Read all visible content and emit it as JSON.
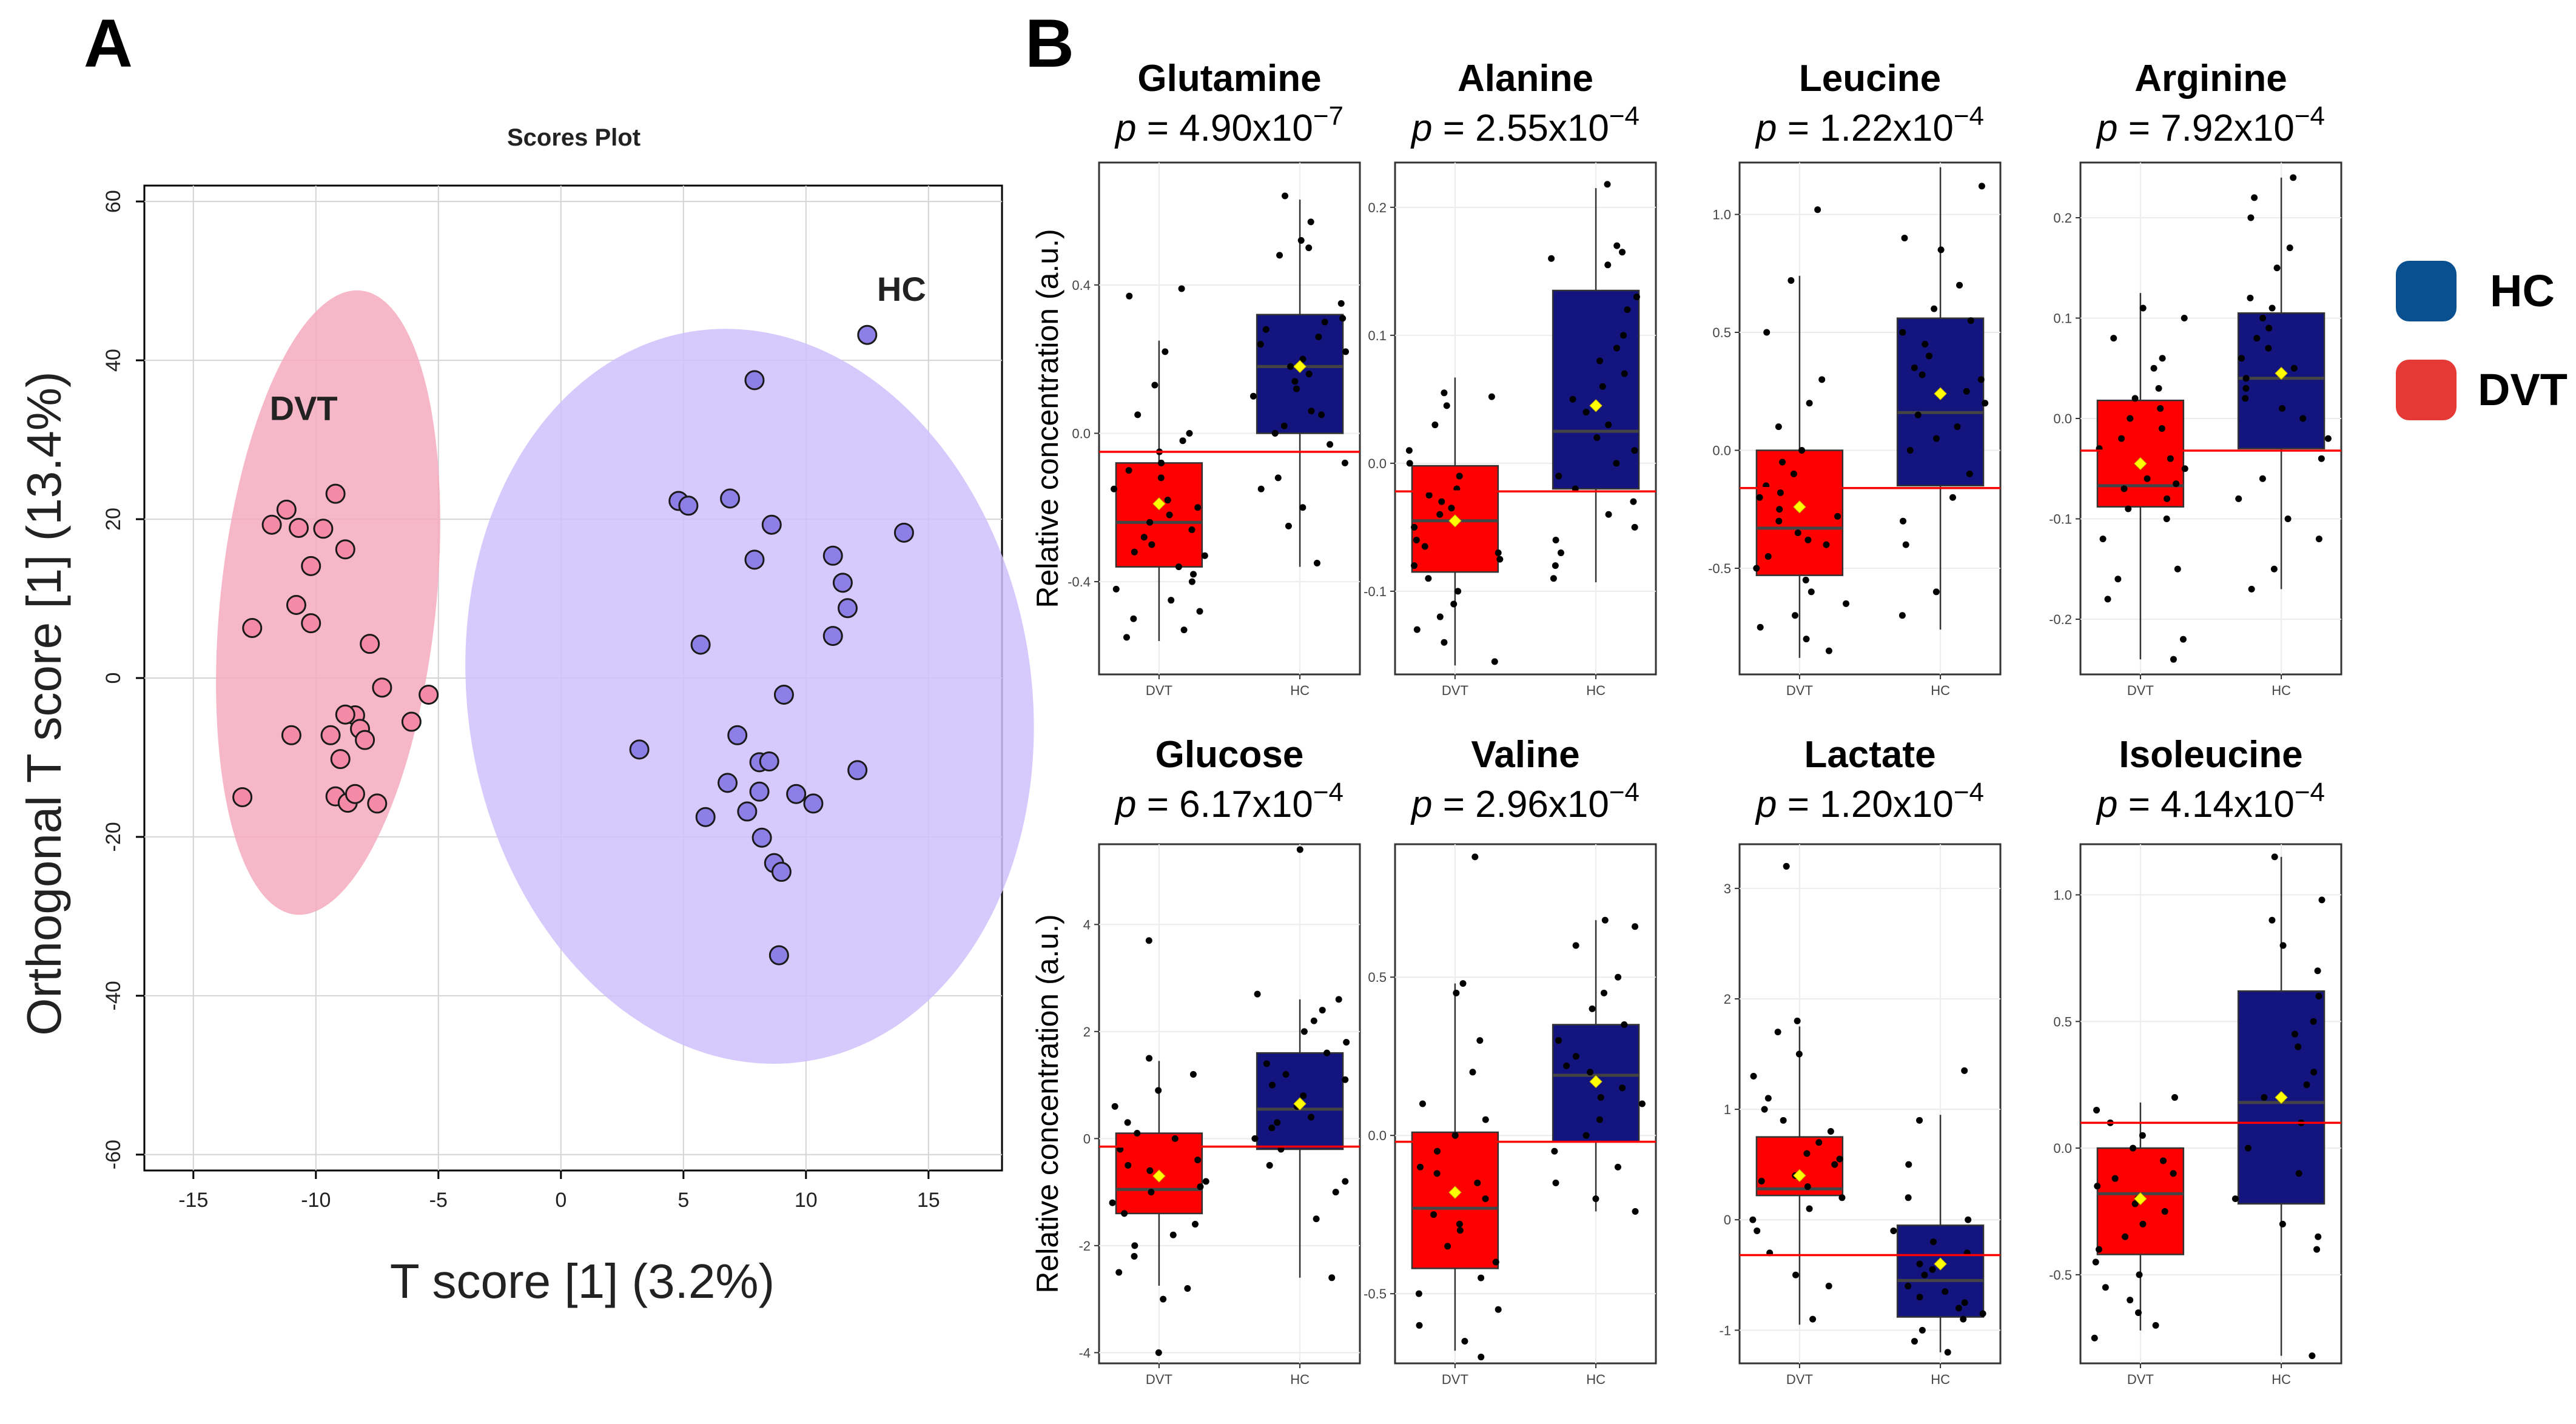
{
  "panel_a_letter": "A",
  "panel_b_letter": "B",
  "legend": {
    "items": [
      {
        "label": "HC",
        "color": "#0a4f8f"
      },
      {
        "label": "DVT",
        "color": "#e53935"
      }
    ]
  },
  "chart_data": [
    {
      "panel": "A",
      "type": "scatter",
      "title": "Scores Plot",
      "xlabel": "T score [1] (3.2%)",
      "ylabel": "Orthogonal T score [1] (13.4%)",
      "xlim": [
        -17,
        18
      ],
      "ylim": [
        -62,
        62
      ],
      "xticks": [
        -15,
        -10,
        -5,
        0,
        5,
        10,
        15
      ],
      "xtick_labels": [
        "-15",
        "-10",
        "-5",
        "0",
        "5",
        "10",
        "15"
      ],
      "yticks": [
        -60,
        -40,
        -20,
        0,
        20,
        40,
        60
      ],
      "ytick_labels": [
        "-60",
        "-40",
        "-20",
        "0",
        "20",
        "40",
        "60"
      ],
      "grid": true,
      "series": [
        {
          "name": "DVT",
          "label": "DVT",
          "fill": "#f48aa6",
          "ellipse_color": "#f5aac0",
          "ellipse": {
            "cx": -9.5,
            "cy": 9.5,
            "rx": 4.4,
            "ry": 39.5,
            "angle": 6
          },
          "label_pos": [
            -10.5,
            32.5
          ],
          "points": [
            [
              -11.2,
              21.2
            ],
            [
              -11.8,
              19.3
            ],
            [
              -10.7,
              18.9
            ],
            [
              -9.2,
              23.2
            ],
            [
              -8.8,
              16.2
            ],
            [
              -10.2,
              14.1
            ],
            [
              -9.7,
              18.8
            ],
            [
              -10.8,
              9.2
            ],
            [
              -10.2,
              6.9
            ],
            [
              -12.6,
              6.3
            ],
            [
              -7.8,
              4.3
            ],
            [
              -7.3,
              -1.2
            ],
            [
              -5.4,
              -2.1
            ],
            [
              -8.4,
              -4.7
            ],
            [
              -8.8,
              -4.6
            ],
            [
              -8.2,
              -6.4
            ],
            [
              -8.0,
              -7.8
            ],
            [
              -6.1,
              -5.5
            ],
            [
              -9.4,
              -7.2
            ],
            [
              -11.0,
              -7.2
            ],
            [
              -9.0,
              -10.2
            ],
            [
              -9.2,
              -14.9
            ],
            [
              -8.7,
              -15.7
            ],
            [
              -8.4,
              -14.6
            ],
            [
              -7.5,
              -15.8
            ],
            [
              -13.0,
              -15.0
            ]
          ]
        },
        {
          "name": "HC",
          "label": "HC",
          "fill": "#8e7fe6",
          "ellipse_color": "#cfc1fb",
          "ellipse": {
            "cx": 7.7,
            "cy": -2.3,
            "rx": 11.5,
            "ry": 46.5,
            "angle": -9
          },
          "label_pos": [
            13.9,
            47.5
          ],
          "points": [
            [
              12.5,
              43.2
            ],
            [
              7.9,
              37.5
            ],
            [
              4.8,
              22.3
            ],
            [
              5.2,
              21.7
            ],
            [
              6.9,
              22.6
            ],
            [
              8.6,
              19.3
            ],
            [
              14.0,
              18.3
            ],
            [
              11.1,
              15.4
            ],
            [
              7.9,
              14.9
            ],
            [
              11.5,
              12.0
            ],
            [
              11.7,
              8.8
            ],
            [
              11.1,
              5.3
            ],
            [
              5.7,
              4.2
            ],
            [
              9.1,
              -2.1
            ],
            [
              3.2,
              -9.0
            ],
            [
              7.2,
              -7.2
            ],
            [
              8.1,
              -10.6
            ],
            [
              8.5,
              -10.5
            ],
            [
              6.8,
              -13.2
            ],
            [
              12.1,
              -11.6
            ],
            [
              7.6,
              -16.8
            ],
            [
              9.6,
              -14.6
            ],
            [
              10.3,
              -15.8
            ],
            [
              8.1,
              -14.3
            ],
            [
              5.9,
              -17.5
            ],
            [
              8.2,
              -20.1
            ],
            [
              8.7,
              -23.3
            ],
            [
              9.0,
              -24.4
            ],
            [
              8.9,
              -34.9
            ]
          ]
        }
      ]
    },
    {
      "panel": "B",
      "type": "box",
      "title": "Glutamine",
      "p_prefix": "p",
      "p_value": "= 4.90x10",
      "p_exp": "−7",
      "ylabel": "Relative concentration (a.u.)",
      "categories": [
        "DVT",
        "HC"
      ],
      "ylim": [
        -0.65,
        0.73
      ],
      "yticks": [
        -0.4,
        0.0,
        0.4
      ],
      "ytick_labels": [
        "-0.4",
        "0.0",
        "0.4"
      ],
      "ref_line": -0.05,
      "boxes": [
        {
          "name": "DVT",
          "color": "#ff0000",
          "q1": -0.36,
          "median": -0.24,
          "q3": -0.08,
          "mean": -0.19,
          "whisker_low": -0.56,
          "whisker_high": 0.25
        },
        {
          "name": "HC",
          "color": "#14147f",
          "q1": 0.0,
          "median": 0.18,
          "q3": 0.32,
          "mean": 0.18,
          "whisker_low": -0.36,
          "whisker_high": 0.63
        }
      ],
      "points_dvt": [
        0.37,
        0.39,
        0.22,
        0.13,
        0.05,
        0.0,
        -0.02,
        -0.05,
        -0.08,
        -0.12,
        -0.15,
        -0.18,
        -0.22,
        -0.24,
        -0.26,
        -0.28,
        -0.3,
        -0.32,
        -0.33,
        -0.36,
        -0.38,
        -0.4,
        -0.42,
        -0.45,
        -0.48,
        -0.5,
        -0.53,
        -0.55,
        -0.2,
        -0.1
      ],
      "points_hc": [
        0.64,
        0.57,
        0.5,
        0.52,
        0.48,
        0.35,
        0.31,
        0.28,
        0.26,
        0.24,
        0.22,
        0.2,
        0.18,
        0.16,
        0.14,
        0.12,
        0.1,
        0.05,
        0.02,
        0.0,
        -0.03,
        -0.08,
        -0.12,
        -0.15,
        -0.2,
        -0.25,
        -0.35,
        0.3,
        0.06
      ]
    },
    {
      "panel": "B",
      "type": "box",
      "title": "Alanine",
      "p_prefix": "p",
      "p_value": "= 2.55x10",
      "p_exp": "−4",
      "ylabel": "",
      "categories": [
        "DVT",
        "HC"
      ],
      "ylim": [
        -0.165,
        0.235
      ],
      "yticks": [
        -0.1,
        0.0,
        0.1,
        0.2
      ],
      "ytick_labels": [
        "-0.1",
        "0.0",
        "0.1",
        "0.2"
      ],
      "ref_line": -0.022,
      "boxes": [
        {
          "name": "DVT",
          "color": "#ff0000",
          "q1": -0.085,
          "median": -0.045,
          "q3": -0.002,
          "mean": -0.045,
          "whisker_low": -0.158,
          "whisker_high": 0.067
        },
        {
          "name": "HC",
          "color": "#14147f",
          "q1": -0.02,
          "median": 0.025,
          "q3": 0.135,
          "mean": 0.045,
          "whisker_low": -0.093,
          "whisker_high": 0.215
        },
        {
          "name": "_",
          "color": "#14147f",
          "q1": 0,
          "median": 0,
          "q3": 0,
          "mean": 0,
          "whisker_low": 0,
          "whisker_high": 0
        }
      ],
      "points_dvt": [
        0.055,
        0.052,
        0.045,
        0.03,
        0.01,
        0.0,
        -0.01,
        -0.02,
        -0.03,
        -0.04,
        -0.05,
        -0.06,
        -0.07,
        -0.08,
        -0.09,
        -0.1,
        -0.11,
        -0.12,
        -0.13,
        -0.14,
        -0.155,
        -0.035,
        -0.025,
        -0.065,
        -0.075
      ],
      "points_hc": [
        0.218,
        0.17,
        0.16,
        0.165,
        0.155,
        0.13,
        0.12,
        0.1,
        0.09,
        0.07,
        0.06,
        0.04,
        0.03,
        0.02,
        0.01,
        0.0,
        -0.01,
        -0.02,
        -0.03,
        -0.04,
        -0.05,
        -0.06,
        -0.07,
        -0.08,
        -0.09,
        0.05,
        0.08
      ]
    },
    {
      "panel": "B",
      "type": "box",
      "title": "Leucine",
      "p_prefix": "p",
      "p_value": "= 1.22x10",
      "p_exp": "−4",
      "ylabel": "",
      "categories": [
        "DVT",
        "HC"
      ],
      "ylim": [
        -0.95,
        1.22
      ],
      "yticks": [
        -0.5,
        0.0,
        0.5,
        1.0
      ],
      "ytick_labels": [
        "-0.5",
        "0.0",
        "0.5",
        "1.0"
      ],
      "ref_line": -0.16,
      "boxes": [
        {
          "name": "DVT",
          "color": "#ff0000",
          "q1": -0.53,
          "median": -0.33,
          "q3": 0.0,
          "mean": -0.24,
          "whisker_low": -0.88,
          "whisker_high": 0.74
        },
        {
          "name": "HC",
          "color": "#14147f",
          "q1": -0.15,
          "median": 0.16,
          "q3": 0.56,
          "mean": 0.24,
          "whisker_low": -0.76,
          "whisker_high": 1.2
        }
      ],
      "points_dvt": [
        1.02,
        0.72,
        0.5,
        0.3,
        0.2,
        0.1,
        0.0,
        -0.05,
        -0.1,
        -0.15,
        -0.2,
        -0.25,
        -0.3,
        -0.35,
        -0.4,
        -0.45,
        -0.5,
        -0.55,
        -0.6,
        -0.65,
        -0.7,
        -0.75,
        -0.8,
        -0.85,
        -0.28,
        -0.38,
        -0.18
      ],
      "points_hc": [
        1.12,
        0.9,
        0.85,
        0.6,
        0.5,
        0.45,
        0.4,
        0.35,
        0.3,
        0.25,
        0.2,
        0.15,
        0.1,
        0.05,
        0.0,
        -0.1,
        -0.2,
        -0.3,
        -0.4,
        -0.6,
        -0.7,
        0.7,
        0.55,
        0.32
      ]
    },
    {
      "panel": "B",
      "type": "box",
      "title": "Arginine",
      "p_prefix": "p",
      "p_value": "= 7.92x10",
      "p_exp": "−4",
      "ylabel": "",
      "categories": [
        "DVT",
        "HC"
      ],
      "ylim": [
        -0.255,
        0.255
      ],
      "yticks": [
        -0.2,
        -0.1,
        0.0,
        0.1,
        0.2
      ],
      "ytick_labels": [
        "-0.2",
        "-0.1",
        "0.0",
        "0.1",
        "0.2"
      ],
      "ref_line": -0.032,
      "boxes": [
        {
          "name": "DVT",
          "color": "#ff0000",
          "q1": -0.088,
          "median": -0.067,
          "q3": 0.018,
          "mean": -0.045,
          "whisker_low": -0.24,
          "whisker_high": 0.125
        },
        {
          "name": "HC",
          "color": "#14147f",
          "q1": -0.03,
          "median": 0.04,
          "q3": 0.105,
          "mean": 0.045,
          "whisker_low": -0.17,
          "whisker_high": 0.24
        }
      ],
      "points_dvt": [
        0.11,
        0.1,
        0.08,
        0.06,
        0.05,
        0.03,
        0.02,
        0.01,
        0.0,
        -0.01,
        -0.02,
        -0.03,
        -0.04,
        -0.05,
        -0.06,
        -0.07,
        -0.08,
        -0.09,
        -0.1,
        -0.12,
        -0.15,
        -0.16,
        -0.18,
        -0.22,
        -0.24,
        -0.065
      ],
      "points_hc": [
        0.24,
        0.22,
        0.2,
        0.17,
        0.15,
        0.12,
        0.11,
        0.1,
        0.09,
        0.08,
        0.07,
        0.06,
        0.05,
        0.04,
        0.03,
        0.02,
        0.0,
        -0.02,
        -0.04,
        -0.06,
        -0.08,
        -0.1,
        -0.12,
        -0.15,
        -0.17,
        0.01
      ]
    },
    {
      "panel": "B",
      "type": "box",
      "title": "Glucose",
      "p_prefix": "p",
      "p_value": "= 6.17x10",
      "p_exp": "−4",
      "ylabel": "Relative concentration (a.u.)",
      "categories": [
        "DVT",
        "HC"
      ],
      "ylim": [
        -4.2,
        5.5
      ],
      "yticks": [
        -4,
        -2,
        0,
        2,
        4
      ],
      "ytick_labels": [
        "-4",
        "-2",
        "0",
        "2",
        "4"
      ],
      "ref_line": -0.15,
      "boxes": [
        {
          "name": "DVT",
          "color": "#ff0000",
          "q1": -1.4,
          "median": -0.95,
          "q3": 0.1,
          "mean": -0.7,
          "whisker_low": -2.75,
          "whisker_high": 1.45
        },
        {
          "name": "HC",
          "color": "#14147f",
          "q1": -0.2,
          "median": 0.55,
          "q3": 1.6,
          "mean": 0.65,
          "whisker_low": -2.6,
          "whisker_high": 2.6
        }
      ],
      "points_dvt": [
        3.7,
        1.5,
        1.2,
        0.9,
        0.6,
        0.3,
        0.1,
        0.0,
        -0.2,
        -0.4,
        -0.6,
        -0.8,
        -1.0,
        -1.2,
        -1.4,
        -1.6,
        -1.8,
        -2.0,
        -2.2,
        -2.5,
        -2.8,
        -3.0,
        -4.0,
        -0.5,
        -0.9
      ],
      "points_hc": [
        5.4,
        2.7,
        2.6,
        2.4,
        2.2,
        2.0,
        1.8,
        1.6,
        1.4,
        1.2,
        1.0,
        0.8,
        0.6,
        0.4,
        0.2,
        0.0,
        -0.2,
        -0.5,
        -0.8,
        -1.0,
        -1.5,
        -2.6,
        0.3,
        1.1
      ]
    },
    {
      "panel": "B",
      "type": "box",
      "title": "Valine",
      "p_prefix": "p",
      "p_value": "= 2.96x10",
      "p_exp": "−4",
      "ylabel": "",
      "categories": [
        "DVT",
        "HC"
      ],
      "ylim": [
        -0.72,
        0.92
      ],
      "yticks": [
        -0.5,
        0.0,
        0.5
      ],
      "ytick_labels": [
        "-0.5",
        "0.0",
        "0.5"
      ],
      "ref_line": -0.02,
      "boxes": [
        {
          "name": "DVT",
          "color": "#ff0000",
          "q1": -0.42,
          "median": -0.23,
          "q3": 0.01,
          "mean": -0.18,
          "whisker_low": -0.68,
          "whisker_high": 0.48
        },
        {
          "name": "HC",
          "color": "#14147f",
          "q1": -0.02,
          "median": 0.19,
          "q3": 0.35,
          "mean": 0.17,
          "whisker_low": -0.24,
          "whisker_high": 0.68
        }
      ],
      "points_dvt": [
        0.88,
        0.48,
        0.45,
        0.3,
        0.2,
        0.1,
        0.05,
        0.0,
        -0.05,
        -0.1,
        -0.15,
        -0.2,
        -0.25,
        -0.3,
        -0.35,
        -0.4,
        -0.45,
        -0.5,
        -0.55,
        -0.6,
        -0.65,
        -0.7,
        -0.28,
        -0.12
      ],
      "points_hc": [
        0.68,
        0.66,
        0.6,
        0.5,
        0.45,
        0.4,
        0.35,
        0.3,
        0.25,
        0.2,
        0.15,
        0.1,
        0.05,
        0.0,
        -0.05,
        -0.1,
        -0.15,
        -0.2,
        -0.24,
        0.22,
        0.12
      ]
    },
    {
      "panel": "B",
      "type": "box",
      "title": "Lactate",
      "p_prefix": "p",
      "p_value": "= 1.20x10",
      "p_exp": "−4",
      "ylabel": "",
      "categories": [
        "DVT",
        "HC"
      ],
      "ylim": [
        -1.3,
        3.4
      ],
      "yticks": [
        -1,
        0,
        1,
        2,
        3
      ],
      "ytick_labels": [
        "-1",
        "0",
        "1",
        "2",
        "3"
      ],
      "ref_line": -0.32,
      "boxes": [
        {
          "name": "DVT",
          "color": "#ff0000",
          "q1": 0.22,
          "median": 0.28,
          "q3": 0.75,
          "mean": 0.4,
          "whisker_low": -0.95,
          "whisker_high": 1.75
        },
        {
          "name": "HC",
          "color": "#14147f",
          "q1": -0.88,
          "median": -0.55,
          "q3": -0.05,
          "mean": -0.4,
          "whisker_low": -1.2,
          "whisker_high": 0.95
        }
      ],
      "points_dvt": [
        3.2,
        1.8,
        1.7,
        1.5,
        1.3,
        1.1,
        1.0,
        0.9,
        0.8,
        0.7,
        0.6,
        0.5,
        0.4,
        0.3,
        0.2,
        0.1,
        0.0,
        -0.1,
        -0.3,
        -0.5,
        -0.6,
        -0.9,
        0.35,
        0.55
      ],
      "points_hc": [
        1.35,
        0.9,
        0.5,
        0.2,
        0.0,
        -0.1,
        -0.2,
        -0.3,
        -0.4,
        -0.5,
        -0.6,
        -0.7,
        -0.8,
        -0.85,
        -0.9,
        -1.0,
        -1.1,
        -1.2,
        -0.45,
        -0.65,
        -0.75
      ]
    },
    {
      "panel": "B",
      "type": "box",
      "title": "Isoleucine",
      "p_prefix": "p",
      "p_value": "= 4.14x10",
      "p_exp": "−4",
      "ylabel": "",
      "categories": [
        "DVT",
        "HC"
      ],
      "ylim": [
        -0.85,
        1.2
      ],
      "yticks": [
        -0.5,
        0.0,
        0.5,
        1.0
      ],
      "ytick_labels": [
        "-0.5",
        "0.0",
        "0.5",
        "1.0"
      ],
      "ref_line": 0.1,
      "boxes": [
        {
          "name": "DVT",
          "color": "#ff0000",
          "q1": -0.42,
          "median": -0.18,
          "q3": 0.0,
          "mean": -0.2,
          "whisker_low": -0.72,
          "whisker_high": 0.18
        },
        {
          "name": "HC",
          "color": "#14147f",
          "q1": -0.22,
          "median": 0.18,
          "q3": 0.62,
          "mean": 0.2,
          "whisker_low": -0.82,
          "whisker_high": 1.15
        }
      ],
      "points_dvt": [
        0.2,
        0.15,
        0.1,
        0.05,
        0.0,
        -0.05,
        -0.1,
        -0.15,
        -0.2,
        -0.25,
        -0.3,
        -0.35,
        -0.4,
        -0.45,
        -0.5,
        -0.55,
        -0.6,
        -0.65,
        -0.7,
        -0.75,
        -0.22,
        -0.12
      ],
      "points_hc": [
        1.15,
        0.98,
        0.9,
        0.8,
        0.7,
        0.6,
        0.5,
        0.4,
        0.3,
        0.2,
        0.1,
        0.0,
        -0.1,
        -0.2,
        -0.3,
        -0.35,
        -0.4,
        -0.82,
        0.45,
        0.25
      ]
    }
  ]
}
